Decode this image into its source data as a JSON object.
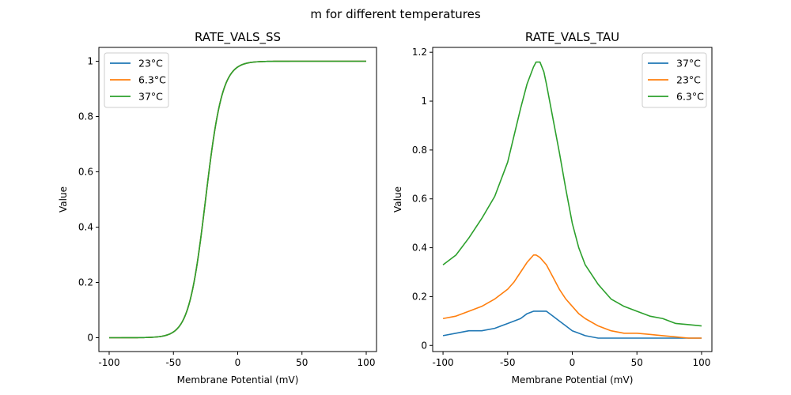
{
  "figure": {
    "suptitle": "m for different temperatures"
  },
  "chart_data": [
    {
      "type": "line",
      "title": "RATE_VALS_SS",
      "xlabel": "Membrane Potential (mV)",
      "ylabel": "Value",
      "xlim": [
        -108,
        108
      ],
      "ylim": [
        -0.05,
        1.05
      ],
      "xticks": [
        -100,
        -50,
        0,
        50,
        100
      ],
      "yticks": [
        0.0,
        0.2,
        0.4,
        0.6,
        0.8,
        1.0
      ],
      "grid": false,
      "legend": "top-left",
      "series": [
        {
          "name": "23°C",
          "color": "#1f77b4",
          "model": "sigmoid",
          "v_half": -25,
          "slope": 6.5,
          "x_range": [
            -100,
            100
          ]
        },
        {
          "name": "6.3°C",
          "color": "#ff7f0e",
          "model": "sigmoid",
          "v_half": -25,
          "slope": 6.5,
          "x_range": [
            -100,
            100
          ]
        },
        {
          "name": "37°C",
          "color": "#2ca02c",
          "model": "sigmoid",
          "v_half": -25,
          "slope": 6.5,
          "x_range": [
            -100,
            100
          ]
        }
      ]
    },
    {
      "type": "line",
      "title": "RATE_VALS_TAU",
      "xlabel": "Membrane Potential (mV)",
      "ylabel": "Value",
      "xlim": [
        -108,
        108
      ],
      "ylim": [
        -0.025,
        1.22
      ],
      "xticks": [
        -100,
        -50,
        0,
        50,
        100
      ],
      "yticks": [
        0.0,
        0.2,
        0.4,
        0.6,
        0.8,
        1.0,
        1.2
      ],
      "grid": false,
      "legend": "top-right",
      "series": [
        {
          "name": "37°C",
          "color": "#1f77b4",
          "x": [
            -100,
            -90,
            -80,
            -70,
            -60,
            -50,
            -45,
            -40,
            -35,
            -30,
            -28,
            -25,
            -20,
            -15,
            -10,
            -5,
            0,
            5,
            10,
            20,
            30,
            40,
            50,
            60,
            70,
            80,
            90,
            100
          ],
          "y": [
            0.04,
            0.05,
            0.06,
            0.06,
            0.07,
            0.09,
            0.1,
            0.11,
            0.13,
            0.14,
            0.14,
            0.14,
            0.14,
            0.12,
            0.1,
            0.08,
            0.06,
            0.05,
            0.04,
            0.03,
            0.03,
            0.03,
            0.03,
            0.03,
            0.03,
            0.03,
            0.03,
            0.03
          ]
        },
        {
          "name": "23°C",
          "color": "#ff7f0e",
          "x": [
            -100,
            -90,
            -80,
            -70,
            -60,
            -50,
            -45,
            -40,
            -35,
            -30,
            -28,
            -25,
            -20,
            -15,
            -10,
            -5,
            0,
            5,
            10,
            20,
            30,
            40,
            50,
            60,
            70,
            80,
            90,
            100
          ],
          "y": [
            0.11,
            0.12,
            0.14,
            0.16,
            0.19,
            0.23,
            0.26,
            0.3,
            0.34,
            0.37,
            0.37,
            0.36,
            0.33,
            0.28,
            0.23,
            0.19,
            0.16,
            0.13,
            0.11,
            0.08,
            0.06,
            0.05,
            0.05,
            0.045,
            0.04,
            0.035,
            0.03,
            0.03
          ]
        },
        {
          "name": "6.3°C",
          "color": "#2ca02c",
          "x": [
            -100,
            -90,
            -80,
            -70,
            -60,
            -50,
            -45,
            -40,
            -35,
            -30,
            -28,
            -25,
            -22,
            -20,
            -15,
            -10,
            -5,
            0,
            5,
            10,
            20,
            30,
            40,
            50,
            60,
            70,
            80,
            90,
            100
          ],
          "y": [
            0.33,
            0.37,
            0.44,
            0.52,
            0.61,
            0.75,
            0.86,
            0.97,
            1.07,
            1.14,
            1.16,
            1.16,
            1.12,
            1.07,
            0.93,
            0.79,
            0.64,
            0.5,
            0.4,
            0.33,
            0.25,
            0.19,
            0.16,
            0.14,
            0.12,
            0.11,
            0.09,
            0.085,
            0.08
          ]
        }
      ]
    }
  ]
}
